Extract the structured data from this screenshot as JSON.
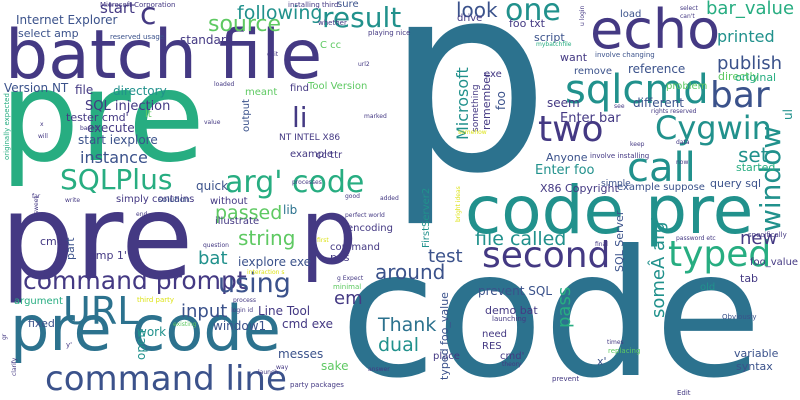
{
  "palette": {
    "dark_purple": "#443983",
    "deep_purple": "#3b528b",
    "blue": "#2c728e",
    "teal": "#21918c",
    "sea_green": "#27ad81",
    "green": "#5ec962",
    "lime": "#aadc32",
    "yellow": "#dde318"
  },
  "words": {
    "p": "p",
    "code_big": "code",
    "pre_main": "pre",
    "pre_lower": "pre",
    "batch_file": "batch file",
    "code_pre": "code pre",
    "pre_code": "pre code",
    "echo": "echo",
    "p_small": "p",
    "sqlcmd": "sqlcmd",
    "command_line": "command line",
    "command_prompt": "command prompt",
    "url": "URL",
    "second": "second",
    "call": "call",
    "typed": "typed",
    "two": "two",
    "cygwin": "Cygwin",
    "bar": "bar",
    "window": "window",
    "result": "result",
    "one": "one",
    "arg_code": "arg' code",
    "sqlplus": "SQLPlus",
    "using": "using",
    "source": "source",
    "following": "following",
    "li": "li",
    "c": "c",
    "look": "look",
    "bar_value": "bar_value",
    "printed": "printed",
    "publish": "publish",
    "set": "set",
    "string": "string",
    "passed": "passed",
    "file_called": "file called",
    "new": "new",
    "around": "around",
    "thank": "Thank",
    "dual": "dual",
    "pass": "pass",
    "input": "input",
    "instance": "instance",
    "bat": "bat",
    "em": "em",
    "test": "test",
    "some_arg": "someÂ arg'",
    "sql_injection": "SQL injection",
    "microsoft": "Microsoft",
    "internet_explorer": "Internet Explorer",
    "start": "start",
    "select_amp": "select amp",
    "standard": "standard",
    "execute": "execute",
    "start_iexplore": "start iexplore",
    "tester_cmd": "tester cmd'",
    "version_nt": "Version NT",
    "file": "file",
    "directory": "directory",
    "quick": "quick",
    "lib": "lib",
    "iexplore_exe": "iexplore exe",
    "line_tool": "Line Tool",
    "cmd_exe": "cmd exe",
    "window1": "window1",
    "messes": "messes",
    "sake": "sake",
    "work": "work",
    "open": "open",
    "part": "part",
    "amp_1": "amp 1'",
    "cmd": "cmd",
    "fixed": "fixed",
    "argument": "argument",
    "sql_server": "SQL Server",
    "x86_copyright": "X86 Copyright",
    "enter_foo": "Enter foo",
    "enter_bar": "Enter bar",
    "anyone": "Anyone",
    "seem": "seem",
    "different": "different",
    "reference": "reference",
    "remove": "remove",
    "want": "want",
    "script": "script",
    "drive": "drive",
    "foo_txt": "foo txt",
    "load": "load",
    "directly": "directly",
    "original": "original",
    "ul": "ul",
    "query_sql": "query sql",
    "started": "started",
    "example_suppose": "example suppose",
    "simple": "simple",
    "foo_value": "foo_value",
    "tab": "tab",
    "old": "old",
    "variable": "variable",
    "syntax": "syntax",
    "x_quote": "x'",
    "place": "place",
    "need": "need",
    "res": "RES",
    "cmd_quote": "cmd'",
    "prevent_sql": "prevent SQL",
    "demo_bat": "demo bat",
    "typed_foo_value": "typed foo_value",
    "nt_intel_x86": "NT INTEL X86",
    "cc_ttr": "cc ttr",
    "encoding": "encoding",
    "command": "command",
    "pas": "pas",
    "example": "example",
    "firstserver2": "FirstServer2",
    "meant": "meant",
    "find": "find",
    "c_cc": "C cc",
    "tool_version": "Tool Version",
    "output": "output",
    "without": "without",
    "illustrate": "illustrate",
    "simply_contains": "simply contains",
    "solution": "solution",
    "sure": "sure",
    "foo": "foo",
    "remember": "remember",
    "exe": "exe",
    "something": "something",
    "problem": "problem",
    "microsoft_corporation": "Microsoft Corporation",
    "installing_third": "installing third",
    "whether": "whether",
    "playing_nice": "playing nice",
    "reserved_usage": "reserved usage",
    "u_login": "u login",
    "involve_changing": "involve changing",
    "mybatchfile": "mybatchfile",
    "involve_installing": "involve installing",
    "rights_reserved": "rights reserved",
    "specifically": "specifically",
    "password_etc": "password etc",
    "obviously": "Obviously",
    "launching": "launching",
    "replacing": "replacing",
    "times": "times",
    "prevent": "prevent",
    "theory": "theory",
    "edit": "Edit",
    "answer": "answer",
    "party_packages": "party packages",
    "final": "final",
    "g_expect": "g Expect",
    "minimal": "minimal",
    "interaction_s": "interaction s",
    "third_party": "third party",
    "question": "question",
    "process": "process",
    "login_id": "login id",
    "existing": "existing",
    "perfect_world": "perfect world",
    "good": "good",
    "processes": "processes",
    "added": "added",
    "first": "first",
    "end": "end",
    "write": "write",
    "far": "far",
    "sweet": "sweet",
    "based": "based",
    "will": "will",
    "x_small": "x",
    "originally_expected": "originally expected",
    "loaded": "loaded",
    "value": "value",
    "exit": "exit",
    "url2": "url2",
    "marked": "marked",
    "data": "data",
    "keep": "keep",
    "now": "now",
    "see": "see",
    "clarify": "clarify",
    "launch": "launch",
    "way": "way",
    "bright_ideas": "bright ideas",
    "y_quote": "y'",
    "gr": "gr",
    "somehow": "somehow",
    "select": "select",
    "cant": "can't",
    "lt": "lt"
  }
}
